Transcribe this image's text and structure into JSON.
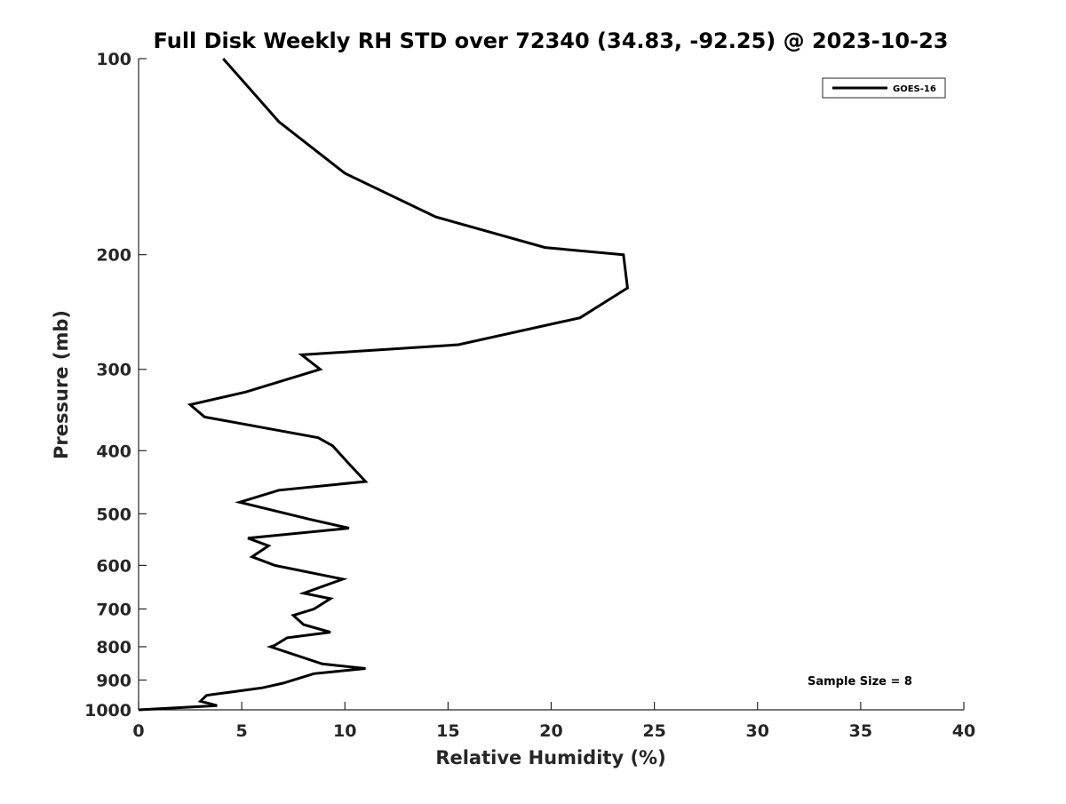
{
  "chart_data": {
    "type": "line",
    "title": "Full Disk Weekly RH STD over 72340 (34.83, -92.25) @ 2023-10-23",
    "xlabel": "Relative Humidity (%)",
    "ylabel": "Pressure (mb)",
    "xlim": [
      0,
      40
    ],
    "ylim": [
      1000,
      100
    ],
    "y_scale": "log",
    "y_reversed": true,
    "x_ticks": [
      "0",
      "5",
      "10",
      "15",
      "20",
      "25",
      "30",
      "35",
      "40"
    ],
    "y_ticks": [
      "100",
      "200",
      "300",
      "400",
      "500",
      "600",
      "700",
      "800",
      "900",
      "1000"
    ],
    "grid": false,
    "legend_position": "top-right",
    "annotation": "Sample Size = 8",
    "series": [
      {
        "name": "GOES-16",
        "color": "#000000",
        "points": [
          [
            4.1,
            100
          ],
          [
            6.8,
            125
          ],
          [
            10.0,
            150
          ],
          [
            14.4,
            175
          ],
          [
            19.7,
            195
          ],
          [
            23.5,
            200
          ],
          [
            23.7,
            225
          ],
          [
            21.4,
            250
          ],
          [
            15.5,
            275
          ],
          [
            7.9,
            285
          ],
          [
            8.8,
            300
          ],
          [
            5.2,
            325
          ],
          [
            2.5,
            340
          ],
          [
            3.2,
            355
          ],
          [
            8.7,
            382
          ],
          [
            9.4,
            393
          ],
          [
            10.2,
            419
          ],
          [
            11.0,
            446
          ],
          [
            6.8,
            460
          ],
          [
            4.9,
            480
          ],
          [
            8.3,
            510
          ],
          [
            10.2,
            526
          ],
          [
            5.3,
            545
          ],
          [
            6.3,
            560
          ],
          [
            5.5,
            582
          ],
          [
            6.6,
            600
          ],
          [
            9.9,
            630
          ],
          [
            8.0,
            662
          ],
          [
            9.3,
            675
          ],
          [
            8.5,
            700
          ],
          [
            7.5,
            716
          ],
          [
            8.0,
            740
          ],
          [
            9.3,
            760
          ],
          [
            7.2,
            775
          ],
          [
            6.6,
            796
          ],
          [
            6.4,
            800
          ],
          [
            8.9,
            850
          ],
          [
            11.0,
            864
          ],
          [
            8.5,
            880
          ],
          [
            7.0,
            910
          ],
          [
            6.0,
            925
          ],
          [
            3.3,
            950
          ],
          [
            3.0,
            970
          ],
          [
            3.8,
            985
          ],
          [
            0.0,
            1000
          ]
        ]
      }
    ]
  }
}
